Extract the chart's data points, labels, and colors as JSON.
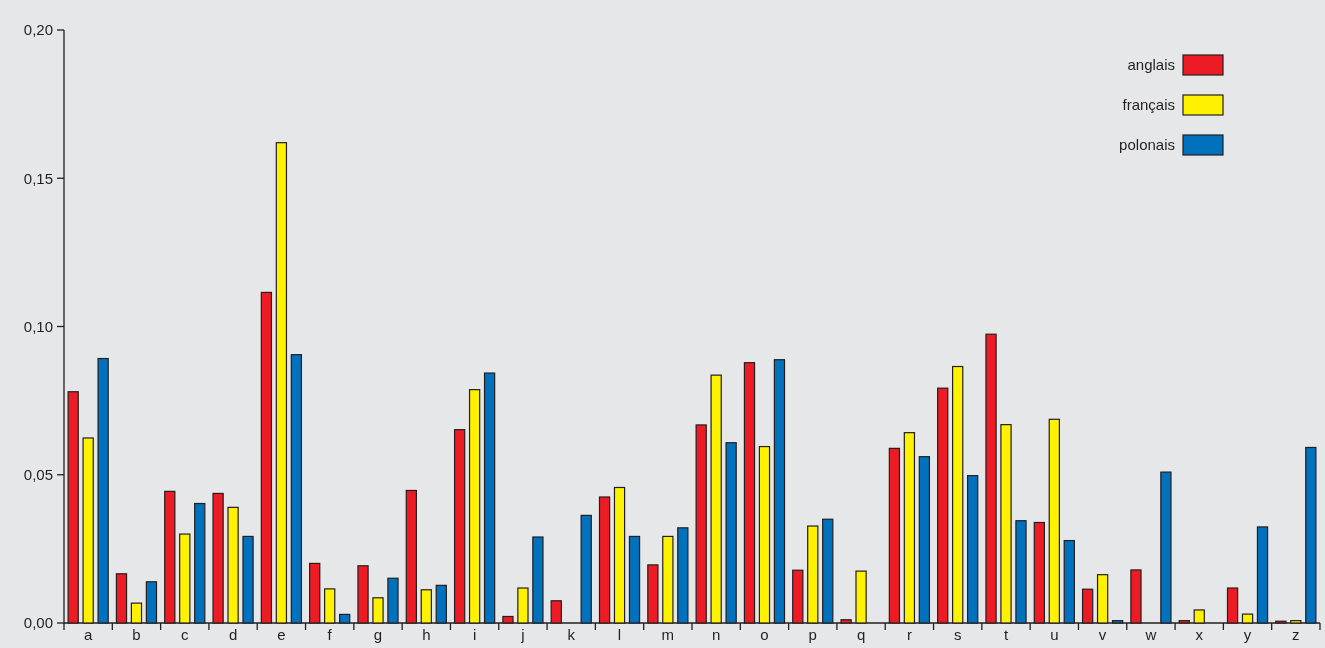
{
  "chart_data": {
    "type": "bar",
    "categories": [
      "a",
      "b",
      "c",
      "d",
      "e",
      "f",
      "g",
      "h",
      "i",
      "j",
      "k",
      "l",
      "m",
      "n",
      "o",
      "p",
      "q",
      "r",
      "s",
      "t",
      "u",
      "v",
      "w",
      "x",
      "y",
      "z"
    ],
    "series": [
      {
        "name": "anglais",
        "color": "#ed1c24",
        "values": [
          0.078,
          0.0166,
          0.0444,
          0.0437,
          0.1115,
          0.0201,
          0.0193,
          0.0447,
          0.0652,
          0.0022,
          0.0075,
          0.0425,
          0.0196,
          0.0668,
          0.0878,
          0.0178,
          0.0011,
          0.0589,
          0.0792,
          0.0974,
          0.0339,
          0.0114,
          0.0179,
          0.0008,
          0.0118,
          0.0006
        ]
      },
      {
        "name": "français",
        "color": "#fff200",
        "values": [
          0.0624,
          0.0067,
          0.03,
          0.039,
          0.162,
          0.0115,
          0.0085,
          0.0112,
          0.0787,
          0.0118,
          0,
          0.0457,
          0.0292,
          0.0836,
          0.0595,
          0.0327,
          0.0175,
          0.0642,
          0.0865,
          0.0669,
          0.0687,
          0.0163,
          0,
          0.0044,
          0.003,
          0.0008
        ]
      },
      {
        "name": "polonais",
        "color": "#0071bc",
        "values": [
          0.0892,
          0.0139,
          0.0403,
          0.0292,
          0.0905,
          0.0029,
          0.0151,
          0.0127,
          0.0843,
          0.029,
          0.0363,
          0.0292,
          0.0321,
          0.0608,
          0.0888,
          0.035,
          0,
          0.0561,
          0.0497,
          0.0345,
          0.0278,
          0.0008,
          0.0509,
          0,
          0.0324,
          0.0592
        ]
      }
    ],
    "ylim": [
      0,
      0.2
    ],
    "yticks": [
      {
        "value": 0,
        "label": "0,00"
      },
      {
        "value": 0.05,
        "label": "0,05"
      },
      {
        "value": 0.1,
        "label": "0,10"
      },
      {
        "value": 0.15,
        "label": "0,15"
      },
      {
        "value": 0.2,
        "label": "0,20"
      }
    ],
    "grid": false,
    "legend": "top right"
  }
}
